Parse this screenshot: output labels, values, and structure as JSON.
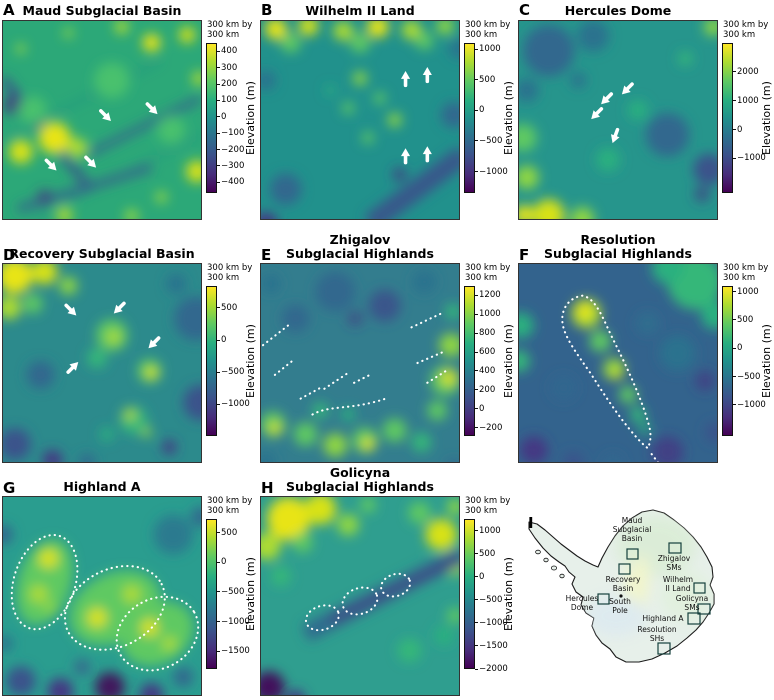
{
  "chart_data": [
    {
      "panel_letter": "A",
      "type": "heatmap",
      "title": "Maud Subglacial Basin",
      "extent_label": "300 km by\n300 km",
      "colormap": "viridis",
      "colorbar": {
        "label": "Elevation (m)",
        "ticks": [
          400,
          300,
          200,
          100,
          0,
          -100,
          -200,
          -300,
          -400
        ],
        "range": [
          -465,
          450
        ]
      },
      "annotation": "four white arrows pointing down-right at parallel linear troughs"
    },
    {
      "panel_letter": "B",
      "type": "heatmap",
      "title": "Wilhelm II Land",
      "extent_label": "300 km by\n300 km",
      "colormap": "viridis",
      "colorbar": {
        "label": "Elevation (m)",
        "ticks": [
          1000,
          500,
          0,
          -500,
          -1000
        ],
        "range": [
          -1350,
          1100
        ]
      },
      "annotation": "four white arrows pointing up at circular depressions"
    },
    {
      "panel_letter": "C",
      "type": "heatmap",
      "title": "Hercules Dome",
      "extent_label": "300 km by\n300 km",
      "colormap": "viridis",
      "colorbar": {
        "label": "Elevation (m)",
        "ticks": [
          2000,
          1000,
          0,
          -1000
        ],
        "range": [
          -2200,
          3000
        ]
      },
      "annotation": "four white arrows pointing down-left along a linear feature"
    },
    {
      "panel_letter": "D",
      "type": "heatmap",
      "title": "Recovery Subglacial Basin",
      "extent_label": "300 km by\n300 km",
      "colormap": "viridis",
      "colorbar": {
        "label": "Elevation (m)",
        "ticks": [
          500,
          0,
          -500,
          -1000
        ],
        "range": [
          -1490,
          840
        ]
      },
      "annotation": "four white arrows converging on a dissected highland block"
    },
    {
      "panel_letter": "E",
      "type": "heatmap",
      "title": "Zhigalov\nSubglacial Highlands",
      "extent_label": "300 km by\n300 km",
      "colormap": "viridis",
      "colorbar": {
        "label": "Elevation (m)",
        "ticks": [
          1200,
          1000,
          800,
          600,
          400,
          200,
          0,
          -200
        ],
        "range": [
          -290,
          1300
        ]
      },
      "annotation": "white dotted line segments tracing escarpments"
    },
    {
      "panel_letter": "F",
      "type": "heatmap",
      "title": "Resolution\nSubglacial Highlands",
      "extent_label": "300 km by\n300 km",
      "colormap": "viridis",
      "colorbar": {
        "label": "Elevation (m)",
        "ticks": [
          1000,
          500,
          0,
          -500,
          -1000
        ],
        "range": [
          -1550,
          1100
        ]
      },
      "annotation": "white dotted teardrop outline around an elongated highland"
    },
    {
      "panel_letter": "G",
      "type": "heatmap",
      "title": "Highland A",
      "extent_label": "300 km by\n300 km",
      "colormap": "viridis",
      "colorbar": {
        "label": "Elevation (m)",
        "ticks": [
          500,
          0,
          -500,
          -1000,
          -1500
        ],
        "range": [
          -1800,
          730
        ]
      },
      "annotation": "white dotted outlines around three highland blocks"
    },
    {
      "panel_letter": "H",
      "type": "heatmap",
      "title": "Golicyna\nSubglacial Highlands",
      "extent_label": "300 km by\n300 km",
      "colormap": "viridis",
      "colorbar": {
        "label": "Elevation (m)",
        "ticks": [
          1000,
          500,
          0,
          -500,
          -1000,
          -1500,
          -2000
        ],
        "range": [
          -2000,
          1250
        ]
      },
      "annotation": "white dotted outlines around three small highland blocks"
    },
    {
      "panel_letter": "I",
      "type": "location map",
      "region": "Antarctica",
      "labels": [
        {
          "text": "Maud\nSubglacial\nBasin"
        },
        {
          "text": "Zhigalov\nSMs"
        },
        {
          "text": "Recovery\nBasin"
        },
        {
          "text": "Wilhelm\nII Land"
        },
        {
          "text": "Golicyna\nSMs"
        },
        {
          "text": "Hercules\nDome"
        },
        {
          "text": "South\nPole"
        },
        {
          "text": "Highland A"
        },
        {
          "text": "Resolution\nSHs"
        }
      ]
    }
  ]
}
